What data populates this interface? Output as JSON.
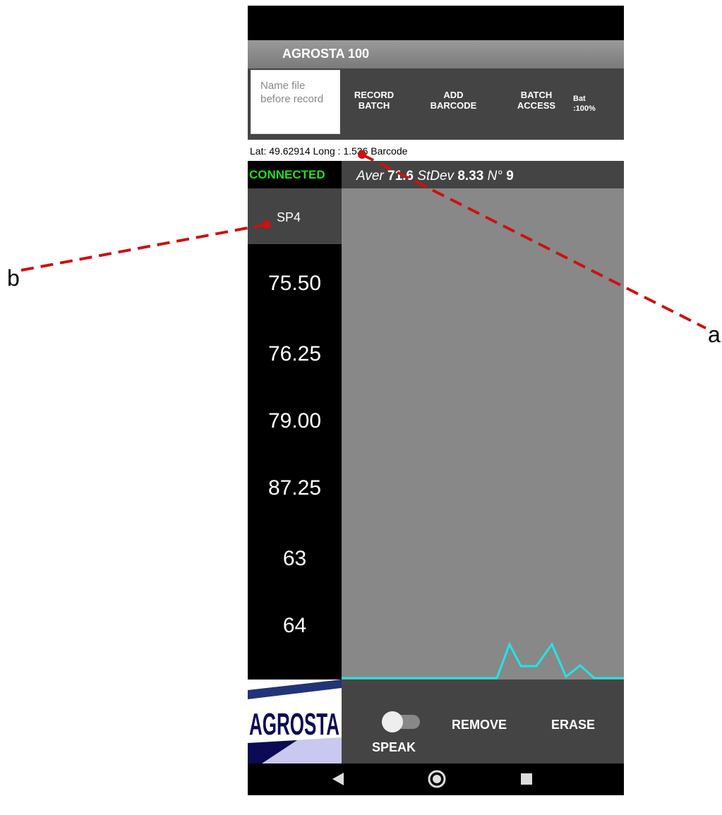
{
  "app": {
    "title": "AGROSTA 100",
    "name_input_placeholder": "Name file before record",
    "buttons": [
      "RECORD BATCH",
      "ADD BARCODE",
      "BATCH ACCESS"
    ],
    "battery": "Bat :100%",
    "location": "Lat: 49.62914 Long : 1.536 Barcode",
    "status": "CONNECTED",
    "stats": [
      {
        "label": "Aver",
        "value": "71.6"
      },
      {
        "label": "StDev",
        "value": "8.33"
      },
      {
        "label": "N°",
        "value": "9"
      }
    ],
    "sensor": "SP4",
    "readings": [
      "75.50",
      "76.25",
      "79.00",
      "87.25",
      "63",
      "64"
    ],
    "logo": "AGROSTA",
    "controls": [
      "SPEAK",
      "REMOVE",
      "ERASE"
    ]
  },
  "annotations": [
    "a",
    "b"
  ]
}
